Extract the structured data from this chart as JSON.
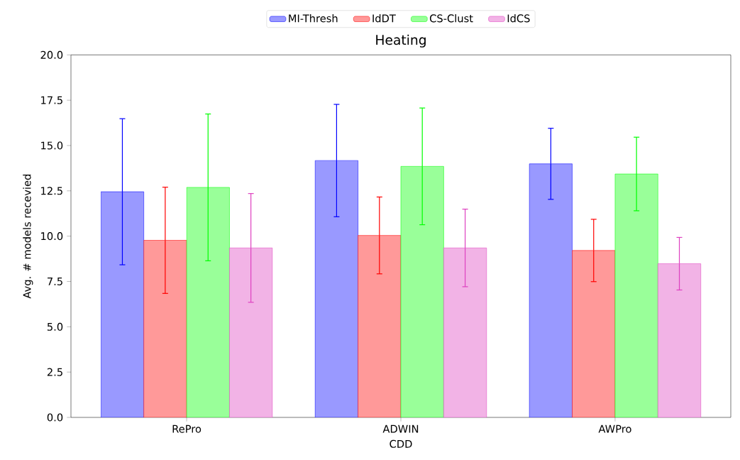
{
  "chart_data": {
    "type": "bar",
    "title": "Heating",
    "xlabel": "CDD",
    "ylabel": "Avg. # models recevied",
    "categories": [
      "RePro",
      "ADWIN",
      "AWPro"
    ],
    "series": [
      {
        "name": "MI-Thresh",
        "color": "#9999ff",
        "values": [
          12.45,
          14.17,
          13.99
        ],
        "errors": [
          4.03,
          3.1,
          1.96
        ]
      },
      {
        "name": "IdDT",
        "color": "#ff9999",
        "values": [
          9.77,
          10.04,
          9.21
        ],
        "errors": [
          2.93,
          2.12,
          1.72
        ]
      },
      {
        "name": "CS-Clust",
        "color": "#99ff99",
        "values": [
          12.69,
          13.85,
          13.43
        ],
        "errors": [
          4.05,
          3.22,
          2.03
        ]
      },
      {
        "name": "IdCS",
        "color": "#f2b3e6",
        "values": [
          9.35,
          9.35,
          8.48
        ],
        "errors": [
          3.0,
          2.14,
          1.45
        ]
      }
    ],
    "ylim": [
      0,
      20
    ],
    "yticks": [
      {
        "value": 0,
        "label": "0.0"
      },
      {
        "value": 2.5,
        "label": "2.5"
      },
      {
        "value": 5,
        "label": "5.0"
      },
      {
        "value": 7.5,
        "label": "7.5"
      },
      {
        "value": 10,
        "label": "10.0"
      },
      {
        "value": 12.5,
        "label": "12.5"
      },
      {
        "value": 15,
        "label": "15.0"
      },
      {
        "value": 17.5,
        "label": "17.5"
      },
      {
        "value": 20,
        "label": "20.0"
      }
    ],
    "legend": "top",
    "grid": false
  }
}
